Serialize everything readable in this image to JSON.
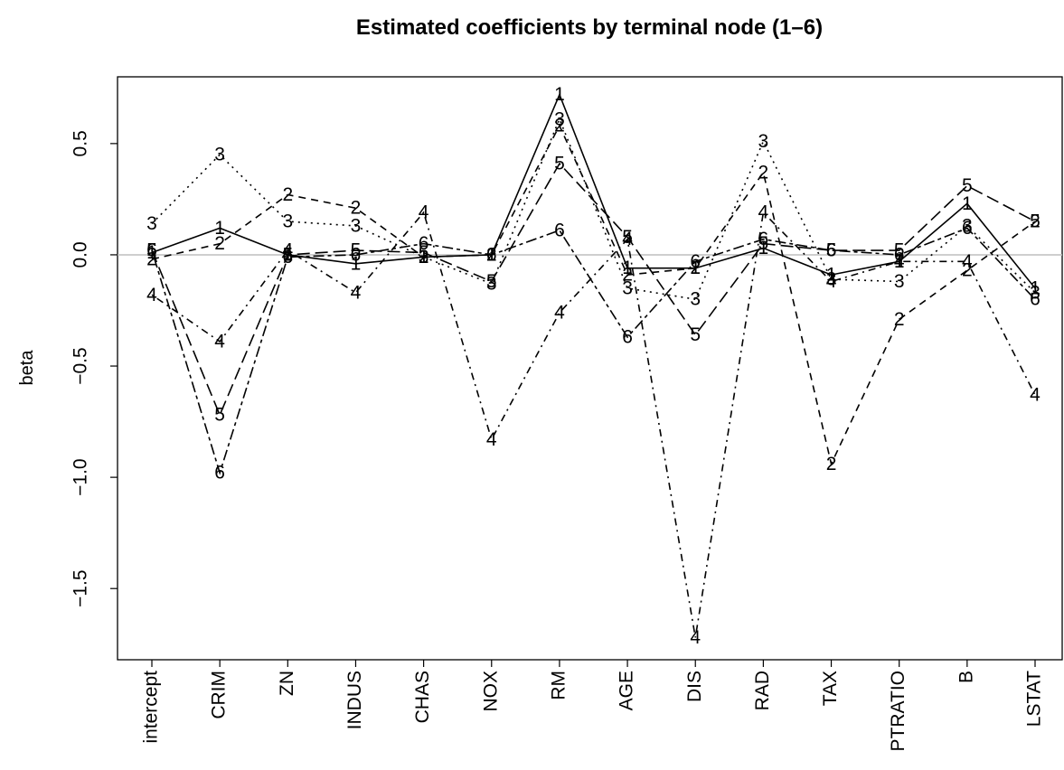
{
  "chart_data": {
    "type": "line",
    "title": "Estimated coefficients by terminal node (1–6)",
    "y_label": "beta",
    "categories": [
      "intercept",
      "CRIM",
      "ZN",
      "INDUS",
      "CHAS",
      "NOX",
      "RM",
      "AGE",
      "DIS",
      "RAD",
      "TAX",
      "PTRATIO",
      "B",
      "LSTAT"
    ],
    "ylim": [
      -1.82,
      0.8
    ],
    "yticks": [
      {
        "value": -1.5,
        "label": "−1.5"
      },
      {
        "value": -1.0,
        "label": "−1.0"
      },
      {
        "value": -0.5,
        "label": "−0.5"
      },
      {
        "value": 0,
        "label": "0.0"
      },
      0.5
    ],
    "reference_line": 0,
    "series": [
      {
        "name": "1",
        "color": "#000000",
        "linestyle": "solid",
        "values": [
          0.01,
          0.12,
          0.0,
          -0.04,
          -0.01,
          0.0,
          0.72,
          -0.06,
          -0.06,
          0.03,
          -0.09,
          -0.03,
          0.23,
          -0.15
        ]
      },
      {
        "name": "2",
        "color": "#000000",
        "linestyle": "dashed",
        "values": [
          -0.02,
          0.05,
          0.27,
          0.21,
          -0.01,
          0.0,
          0.58,
          -0.09,
          -0.06,
          0.37,
          -0.94,
          -0.29,
          -0.07,
          0.15
        ]
      },
      {
        "name": "3",
        "color": "#000000",
        "linestyle": "dotted",
        "values": [
          0.14,
          0.45,
          0.15,
          0.13,
          -0.01,
          -0.13,
          0.61,
          -0.15,
          -0.2,
          0.51,
          -0.11,
          -0.12,
          0.13,
          -0.17
        ]
      },
      {
        "name": "4",
        "color": "#000000",
        "linestyle": "dotdash",
        "values": [
          -0.18,
          -0.39,
          0.02,
          -0.17,
          0.19,
          -0.83,
          -0.26,
          0.07,
          -1.72,
          0.19,
          -0.12,
          -0.03,
          -0.03,
          -0.63
        ]
      },
      {
        "name": "5",
        "color": "#000000",
        "linestyle": "longdash",
        "values": [
          0.02,
          -0.72,
          0.0,
          0.02,
          0.01,
          -0.12,
          0.41,
          0.08,
          -0.36,
          0.05,
          0.02,
          0.02,
          0.31,
          0.15
        ]
      },
      {
        "name": "6",
        "color": "#000000",
        "linestyle": "twodash",
        "values": [
          0.02,
          -0.98,
          -0.01,
          0.0,
          0.05,
          0.0,
          0.11,
          -0.37,
          -0.03,
          0.07,
          0.02,
          0.0,
          0.12,
          -0.2
        ]
      }
    ]
  }
}
